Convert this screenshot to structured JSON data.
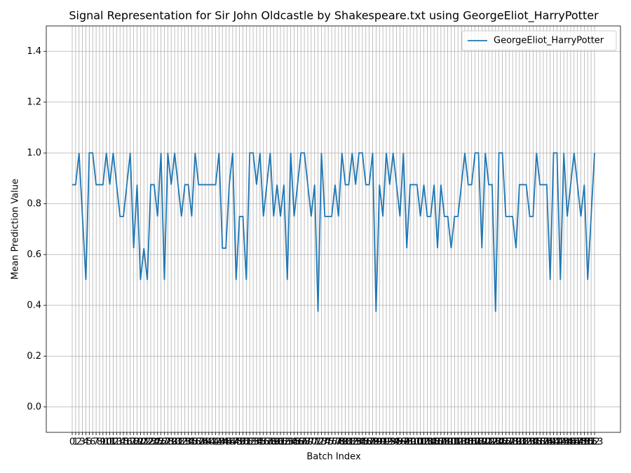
{
  "chart_data": {
    "type": "line",
    "title": "Signal Representation for Sir John Oldcastle by Shakespeare.txt using GeorgeEliot_HarryPotter",
    "x_label": "Batch Index",
    "y_label": "Mean Prediction Value",
    "x": [
      0,
      1,
      2,
      3,
      4,
      5,
      6,
      7,
      8,
      9,
      10,
      11,
      12,
      13,
      14,
      15,
      16,
      17,
      18,
      19,
      20,
      21,
      22,
      23,
      24,
      25,
      26,
      27,
      28,
      29,
      30,
      31,
      32,
      33,
      34,
      35,
      36,
      37,
      38,
      39,
      40,
      41,
      42,
      43,
      44,
      45,
      46,
      47,
      48,
      49,
      50,
      51,
      52,
      53,
      54,
      55,
      56,
      57,
      58,
      59,
      60,
      61,
      62,
      63,
      64,
      65,
      66,
      67,
      68,
      69,
      70,
      71,
      72,
      73,
      74,
      75,
      76,
      77,
      78,
      79,
      80,
      81,
      82,
      83,
      84,
      85,
      86,
      87,
      88,
      89,
      90,
      91,
      92,
      93,
      94,
      95,
      96,
      97,
      98,
      99,
      100,
      101,
      102,
      103,
      104,
      105,
      106,
      107,
      108,
      109,
      110,
      111,
      112,
      113,
      114,
      115,
      116,
      117,
      118,
      119,
      120,
      121,
      122,
      123,
      124,
      125,
      126,
      127,
      128,
      129,
      130,
      131,
      132,
      133,
      134,
      135,
      136,
      137,
      138,
      139,
      140,
      141,
      142,
      143,
      144,
      145,
      146,
      147,
      148,
      149,
      150,
      151,
      152,
      153
    ],
    "series": [
      {
        "name": "GeorgeEliot_HarryPotter",
        "color": "#1f77b4",
        "values": [
          0.875,
          0.875,
          1,
          0.75,
          0.5,
          1,
          1,
          0.875,
          0.875,
          0.875,
          1,
          0.875,
          1,
          0.875,
          0.75,
          0.75,
          0.875,
          1,
          0.625,
          0.875,
          0.5,
          0.625,
          0.5,
          0.875,
          0.875,
          0.75,
          1,
          0.5,
          1,
          0.875,
          1,
          0.875,
          0.75,
          0.875,
          0.875,
          0.75,
          1,
          0.875,
          0.875,
          0.875,
          0.875,
          0.875,
          0.875,
          1,
          0.625,
          0.625,
          0.875,
          1,
          0.5,
          0.75,
          0.75,
          0.5,
          1,
          1,
          0.875,
          1,
          0.75,
          0.875,
          1,
          0.75,
          0.875,
          0.75,
          0.875,
          0.5,
          1,
          0.75,
          0.875,
          1,
          1,
          0.875,
          0.75,
          0.875,
          0.375,
          1,
          0.75,
          0.75,
          0.75,
          0.875,
          0.75,
          1,
          0.875,
          0.875,
          1,
          0.875,
          1,
          1,
          0.875,
          0.875,
          1,
          0.375,
          0.875,
          0.75,
          1,
          0.875,
          1,
          0.875,
          0.75,
          1,
          0.625,
          0.875,
          0.875,
          0.875,
          0.75,
          0.875,
          0.75,
          0.75,
          0.875,
          0.625,
          0.875,
          0.75,
          0.75,
          0.625,
          0.75,
          0.75,
          0.875,
          1,
          0.875,
          0.875,
          1,
          1,
          0.625,
          1,
          0.875,
          0.875,
          0.375,
          1,
          1,
          0.75,
          0.75,
          0.75,
          0.625,
          0.875,
          0.875,
          0.875,
          0.75,
          0.75,
          1,
          0.875,
          0.875,
          0.875,
          0.5,
          1,
          1,
          0.5,
          1,
          0.75,
          0.875,
          1,
          0.875,
          0.75,
          0.875,
          0.5,
          0.75,
          1
        ]
      }
    ],
    "xlim": [
      -7.6,
      160.6
    ],
    "ylim": [
      -0.1,
      1.5
    ],
    "xticks": [
      0,
      1,
      2,
      3,
      4,
      5,
      6,
      7,
      8,
      9,
      10,
      11,
      12,
      13,
      14,
      15,
      16,
      17,
      18,
      19,
      20,
      21,
      22,
      23,
      24,
      25,
      26,
      27,
      28,
      29,
      30,
      31,
      32,
      33,
      34,
      35,
      36,
      37,
      38,
      39,
      40,
      41,
      42,
      43,
      44,
      45,
      46,
      47,
      48,
      49,
      50,
      51,
      52,
      53,
      54,
      55,
      56,
      57,
      58,
      59,
      60,
      61,
      62,
      63,
      64,
      65,
      66,
      67,
      68,
      69,
      70,
      71,
      72,
      73,
      74,
      75,
      76,
      77,
      78,
      79,
      80,
      81,
      82,
      83,
      84,
      85,
      86,
      87,
      88,
      89,
      90,
      91,
      92,
      93,
      94,
      95,
      96,
      97,
      98,
      99,
      100,
      101,
      102,
      103,
      104,
      105,
      106,
      107,
      108,
      109,
      110,
      111,
      112,
      113,
      114,
      115,
      116,
      117,
      118,
      119,
      120,
      121,
      122,
      123,
      124,
      125,
      126,
      127,
      128,
      129,
      130,
      131,
      132,
      133,
      134,
      135,
      136,
      137,
      138,
      139,
      140,
      141,
      142,
      143,
      144,
      145,
      146,
      147,
      148,
      149,
      150,
      151,
      152,
      153
    ],
    "yticks": [
      {
        "value": 0,
        "label": "0.0"
      },
      0.2,
      0.4,
      0.6,
      0.8,
      {
        "value": 1,
        "label": "1.0"
      },
      1.2,
      1.4
    ],
    "grid": true,
    "legend": "upper right"
  }
}
